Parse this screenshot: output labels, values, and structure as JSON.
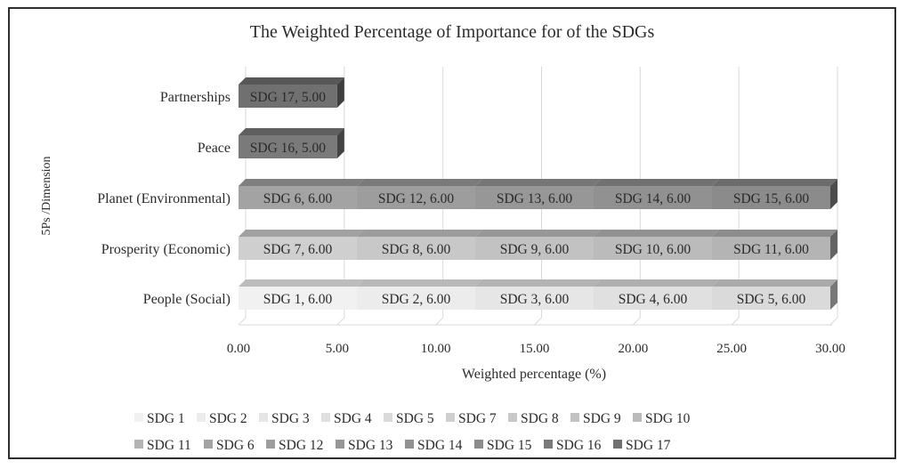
{
  "chart_data": {
    "type": "bar",
    "orientation": "horizontal",
    "stacked": true,
    "title": "The Weighted Percentage of Importance for of the SDGs",
    "xlabel": "Weighted percentage (%)",
    "ylabel": "5Ps /Dimension",
    "xlim": [
      0,
      30
    ],
    "x_ticks": [
      "0.00",
      "5.00",
      "10.00",
      "15.00",
      "20.00",
      "25.00",
      "30.00"
    ],
    "categories": [
      "People (Social)",
      "Prosperity (Economic)",
      "Planet (Environmental)",
      "Peace",
      "Partnerships"
    ],
    "grid": true,
    "legend_position": "bottom",
    "series": [
      {
        "name": "SDG 1",
        "category": "People (Social)",
        "value": 6.0,
        "label": "SDG 1, 6.00",
        "color": "#f1f1f1"
      },
      {
        "name": "SDG 2",
        "category": "People (Social)",
        "value": 6.0,
        "label": "SDG 2, 6.00",
        "color": "#ececec"
      },
      {
        "name": "SDG 3",
        "category": "People (Social)",
        "value": 6.0,
        "label": "SDG 3, 6.00",
        "color": "#e6e6e6"
      },
      {
        "name": "SDG 4",
        "category": "People (Social)",
        "value": 6.0,
        "label": "SDG 4, 6.00",
        "color": "#e0e0e0"
      },
      {
        "name": "SDG 5",
        "category": "People (Social)",
        "value": 6.0,
        "label": "SDG 5, 6.00",
        "color": "#dadada"
      },
      {
        "name": "SDG 7",
        "category": "Prosperity (Economic)",
        "value": 6.0,
        "label": "SDG 7, 6.00",
        "color": "#cfcfcf"
      },
      {
        "name": "SDG 8",
        "category": "Prosperity (Economic)",
        "value": 6.0,
        "label": "SDG 8, 6.00",
        "color": "#c8c8c8"
      },
      {
        "name": "SDG 9",
        "category": "Prosperity (Economic)",
        "value": 6.0,
        "label": "SDG 9, 6.00",
        "color": "#c2c2c2"
      },
      {
        "name": "SDG 10",
        "category": "Prosperity (Economic)",
        "value": 6.0,
        "label": "SDG 10, 6.00",
        "color": "#bbbbbb"
      },
      {
        "name": "SDG 11",
        "category": "Prosperity (Economic)",
        "value": 6.0,
        "label": "SDG 11, 6.00",
        "color": "#b4b4b4"
      },
      {
        "name": "SDG 6",
        "category": "Planet (Environmental)",
        "value": 6.0,
        "label": "SDG 6, 6.00",
        "color": "#a3a3a3"
      },
      {
        "name": "SDG 12",
        "category": "Planet (Environmental)",
        "value": 6.0,
        "label": "SDG 12, 6.00",
        "color": "#9d9d9d"
      },
      {
        "name": "SDG 13",
        "category": "Planet (Environmental)",
        "value": 6.0,
        "label": "SDG 13, 6.00",
        "color": "#979797"
      },
      {
        "name": "SDG 14",
        "category": "Planet (Environmental)",
        "value": 6.0,
        "label": "SDG 14, 6.00",
        "color": "#919191"
      },
      {
        "name": "SDG 15",
        "category": "Planet (Environmental)",
        "value": 6.0,
        "label": "SDG 15, 6.00",
        "color": "#8b8b8b"
      },
      {
        "name": "SDG 16",
        "category": "Peace",
        "value": 5.0,
        "label": "SDG 16, 5.00",
        "color": "#7a7a7a"
      },
      {
        "name": "SDG 17",
        "category": "Partnerships",
        "value": 5.0,
        "label": "SDG 17, 5.00",
        "color": "#707070"
      }
    ],
    "legend": [
      [
        "SDG 1",
        "SDG 2",
        "SDG 3",
        "SDG 4",
        "SDG 5",
        "SDG 7",
        "SDG 8",
        "SDG 9",
        "SDG 10"
      ],
      [
        "SDG 11",
        "SDG 6",
        "SDG 12",
        "SDG 13",
        "SDG 14",
        "SDG 15",
        "SDG 16",
        "SDG 17"
      ]
    ]
  }
}
